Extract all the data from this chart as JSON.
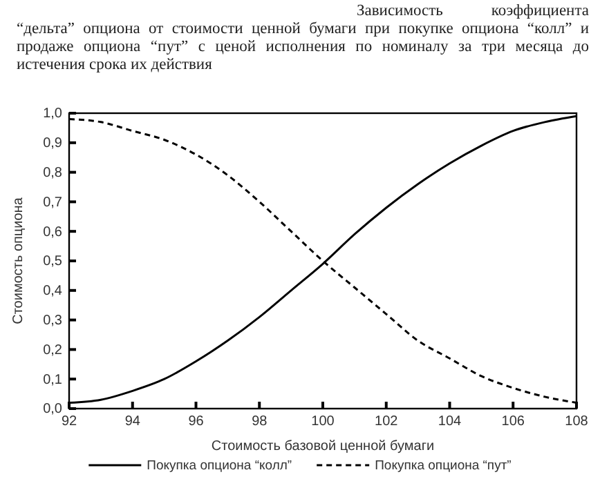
{
  "chart_data": {
    "type": "line",
    "title": "Зависимость коэффициента “дельта” опциона от стоимости ценной бумаги при покупке опциона “колл” и продаже опциона “пут” с ценой исполнения по номиналу за три месяца до истечения срока их действия",
    "xlabel": "Стоимость базовой ценной бумаги",
    "ylabel": "Стоимость опциона",
    "x": [
      92,
      93,
      94,
      95,
      96,
      97,
      98,
      99,
      100,
      101,
      102,
      103,
      104,
      105,
      106,
      107,
      108
    ],
    "series": [
      {
        "name": "Покупка опциона “колл”",
        "color": "#000000",
        "line_style": "solid",
        "values": [
          0.02,
          0.03,
          0.06,
          0.1,
          0.16,
          0.23,
          0.31,
          0.4,
          0.49,
          0.59,
          0.68,
          0.76,
          0.83,
          0.89,
          0.94,
          0.97,
          0.99
        ]
      },
      {
        "name": "Покупка опциона “пут”",
        "color": "#000000",
        "line_style": "dashed",
        "values": [
          0.98,
          0.97,
          0.94,
          0.91,
          0.86,
          0.79,
          0.7,
          0.6,
          0.5,
          0.41,
          0.32,
          0.23,
          0.17,
          0.11,
          0.07,
          0.04,
          0.02
        ]
      }
    ],
    "xlim": [
      92,
      108
    ],
    "xticks": [
      92,
      94,
      96,
      98,
      100,
      102,
      104,
      106,
      108
    ],
    "ylim": [
      0,
      1
    ],
    "yticks": [
      {
        "value": 0,
        "label": "0,0"
      },
      {
        "value": 0.1,
        "label": "0,1"
      },
      {
        "value": 0.2,
        "label": "0,2"
      },
      {
        "value": 0.3,
        "label": "0,3"
      },
      {
        "value": 0.4,
        "label": "0,4"
      },
      {
        "value": 0.5,
        "label": "0,5"
      },
      {
        "value": 0.6,
        "label": "0,6"
      },
      {
        "value": 0.7,
        "label": "0,7"
      },
      {
        "value": 0.8,
        "label": "0,8"
      },
      {
        "value": 0.9,
        "label": "0,9"
      },
      {
        "value": 1,
        "label": "1,0"
      }
    ],
    "grid": false,
    "legend": "bottom",
    "marker": "none"
  }
}
